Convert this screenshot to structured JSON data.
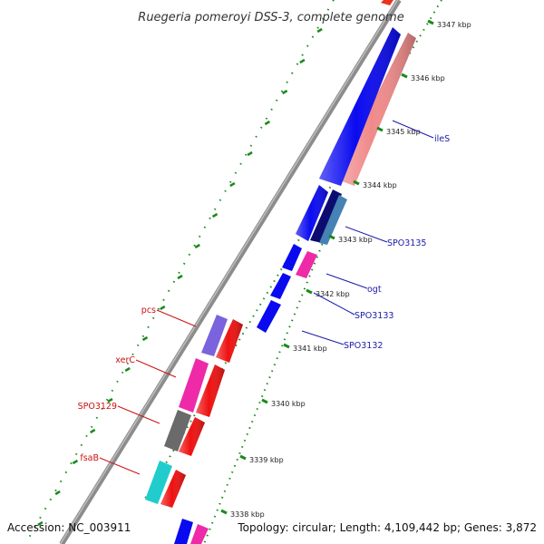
{
  "title": "Ruegeria pomeroyi DSS-3, complete genome",
  "footer": {
    "accession": "Accession: NC_003911",
    "summary": "Topology: circular; Length: 4,109,442 bp; Genes: 3,872"
  },
  "colors": {
    "backbone": "#8c8c8c",
    "tick": "#1a8a1a",
    "forward_label": "#1a1aa8",
    "reverse_label": "#cc1111"
  },
  "kbp_labels": [
    "3338 kbp",
    "3339 kbp",
    "3340 kbp",
    "3341 kbp",
    "3342 kbp",
    "3343 kbp",
    "3344 kbp",
    "3345 kbp",
    "3346 kbp",
    "3347 kbp"
  ],
  "gene_labels": [
    {
      "text": "ileS",
      "strand": "forward"
    },
    {
      "text": "SPO3135",
      "strand": "forward"
    },
    {
      "text": "ogt",
      "strand": "forward"
    },
    {
      "text": "SPO3133",
      "strand": "forward"
    },
    {
      "text": "SPO3132",
      "strand": "forward"
    },
    {
      "text": "pcs",
      "strand": "reverse"
    },
    {
      "text": "xerC",
      "strand": "reverse"
    },
    {
      "text": "SPO3129",
      "strand": "reverse"
    },
    {
      "text": "fsaB",
      "strand": "reverse"
    }
  ]
}
